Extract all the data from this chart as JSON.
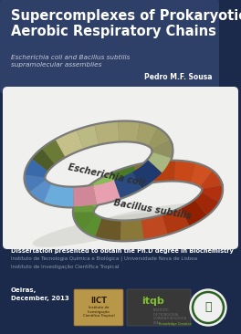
{
  "bg_color": "#1b2a4a",
  "title_text": "Supercomplexes of Prokaryotic\nAerobic Respiratory Chains",
  "subtitle_text": "Escherichia coli and Bacillus subtilis\nsupramolecular assemblies",
  "author_text": "Pedro M.F. Sousa",
  "dissertation_bold": "Dissertation presented to obtain the Ph.D degree in Biochemistry",
  "dissertation_normal": "Instituto de Tecnologia Química e Biológica | Universidade Nova de Lisboa\nInstituto de Investigação Científica Tropical",
  "location_text": "Oeiras,\nDecember, 2013",
  "title_color": "#ffffff",
  "subtitle_color": "#c8ccd8",
  "author_color": "#ffffff",
  "diss_bold_color": "#ffffff",
  "diss_normal_color": "#9098a8",
  "location_color": "#ffffff",
  "title_box_color": "#2e3f68",
  "panel_color": "#f0f0ee",
  "ecoli_label": "Escherichia coli",
  "bacillus_label": "Bacillus subtilis",
  "ec_segments": [
    [
      150,
      170,
      "#5b8fc9"
    ],
    [
      170,
      190,
      "#4a7ab8"
    ],
    [
      190,
      210,
      "#3a6aaa"
    ],
    [
      210,
      225,
      "#4e5d28"
    ],
    [
      225,
      240,
      "#6b7a35"
    ],
    [
      240,
      260,
      "#c5c08a"
    ],
    [
      260,
      275,
      "#baba82"
    ],
    [
      275,
      295,
      "#b5af7a"
    ],
    [
      295,
      315,
      "#aca870"
    ],
    [
      315,
      335,
      "#a3a068"
    ],
    [
      335,
      355,
      "#9a9860"
    ],
    [
      355,
      15,
      "#909060"
    ],
    [
      15,
      35,
      "#a8b880"
    ],
    [
      35,
      60,
      "#1e3a6e"
    ],
    [
      60,
      80,
      "#2a4a80"
    ],
    [
      80,
      100,
      "#e8a0b0"
    ],
    [
      100,
      120,
      "#d08898"
    ],
    [
      120,
      150,
      "#6aacdc"
    ]
  ],
  "bs_segments": [
    [
      160,
      185,
      "#5a8a30"
    ],
    [
      185,
      205,
      "#6a9a3a"
    ],
    [
      205,
      225,
      "#7aaa45"
    ],
    [
      225,
      245,
      "#8abb55"
    ],
    [
      245,
      265,
      "#4a7a28"
    ],
    [
      265,
      280,
      "#8a7030"
    ],
    [
      280,
      300,
      "#b84010"
    ],
    [
      300,
      320,
      "#c84818"
    ],
    [
      320,
      340,
      "#d05020"
    ],
    [
      340,
      360,
      "#c04018"
    ],
    [
      360,
      20,
      "#b03010"
    ],
    [
      20,
      40,
      "#a02808"
    ],
    [
      40,
      60,
      "#902000"
    ],
    [
      60,
      80,
      "#b03810"
    ],
    [
      80,
      100,
      "#c04820"
    ],
    [
      100,
      120,
      "#8a7838"
    ],
    [
      120,
      145,
      "#6a5828"
    ],
    [
      145,
      160,
      "#5a9030"
    ]
  ]
}
